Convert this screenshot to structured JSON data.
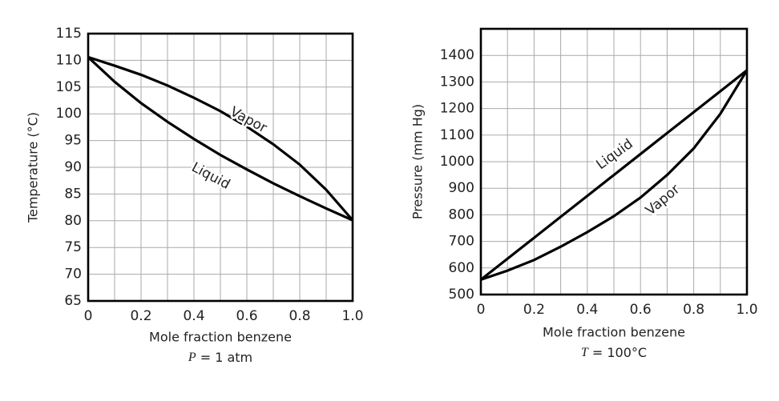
{
  "chart_data": [
    {
      "type": "line",
      "x_label": "Mole fraction benzene",
      "y_label": "Temperature (°C)",
      "caption_var": "P",
      "caption_rest": " = 1 atm",
      "x": [
        0,
        0.1,
        0.2,
        0.3,
        0.4,
        0.5,
        0.6,
        0.7,
        0.8,
        0.9,
        1
      ],
      "series": [
        {
          "name": "Vapor",
          "color": "#000000",
          "values": [
            110.6,
            109,
            107.3,
            105.3,
            103,
            100.5,
            97.6,
            94.3,
            90.5,
            85.8,
            80.1
          ]
        },
        {
          "name": "Liquid",
          "color": "#000000",
          "values": [
            110.6,
            106,
            102,
            98.5,
            95.3,
            92.3,
            89.6,
            87,
            84.6,
            82.3,
            80.1
          ]
        }
      ],
      "xlim": [
        0,
        1
      ],
      "xticks": [
        0,
        0.2,
        0.4,
        0.6,
        0.8,
        {
          "value": 1,
          "label": "1.0"
        }
      ],
      "xgrid": [
        0.1,
        0.2,
        0.3,
        0.4,
        0.5,
        0.6,
        0.7,
        0.8,
        0.9
      ],
      "ylim": [
        65,
        115
      ],
      "yticks": [
        65,
        70,
        75,
        80,
        85,
        90,
        95,
        100,
        105,
        110,
        115
      ],
      "grid": true
    },
    {
      "type": "line",
      "x_label": "Mole fraction benzene",
      "y_label": "Pressure (mm Hg)",
      "caption_var": "T",
      "caption_rest": " = 100°C",
      "x": [
        0,
        0.1,
        0.2,
        0.3,
        0.4,
        0.5,
        0.6,
        0.7,
        0.8,
        0.9,
        1
      ],
      "series": [
        {
          "name": "Liquid",
          "color": "#000000",
          "values": [
            556,
            634.8,
            713.6,
            792.4,
            871.2,
            950,
            1028.8,
            1107.6,
            1186.4,
            1265.2,
            1344
          ]
        },
        {
          "name": "Vapor",
          "color": "#000000",
          "values": [
            556,
            590,
            630,
            680,
            735,
            795,
            865,
            950,
            1050,
            1180,
            1344
          ]
        }
      ],
      "xlim": [
        0,
        1
      ],
      "xticks": [
        0,
        0.2,
        0.4,
        0.6,
        0.8,
        {
          "value": 1,
          "label": "1.0"
        }
      ],
      "xgrid": [
        0.1,
        0.2,
        0.3,
        0.4,
        0.5,
        0.6,
        0.7,
        0.8,
        0.9
      ],
      "ylim": [
        500,
        1500
      ],
      "yticks": [
        500,
        600,
        700,
        800,
        900,
        1000,
        1100,
        1200,
        1300,
        1400
      ],
      "grid": true
    }
  ]
}
